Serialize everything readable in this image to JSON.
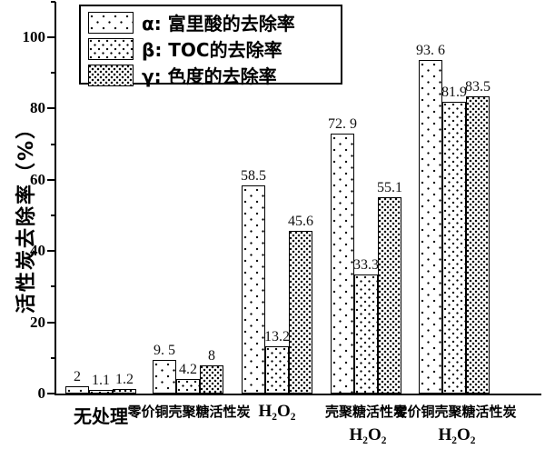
{
  "chart_data": {
    "type": "bar",
    "title": "",
    "xlabel": "",
    "ylabel": "活性炭去除率（%）",
    "ylim": [
      0,
      110
    ],
    "yticks_major": [
      0,
      20,
      40,
      60,
      80,
      100
    ],
    "yticks_minor": [
      10,
      30,
      50,
      70,
      90,
      110
    ],
    "grid": false,
    "legend_position": "top-left-inside",
    "categories": [
      {
        "line1": "无处理",
        "line2": "",
        "style": "cjk-large"
      },
      {
        "line1": "零价铜壳聚糖活性炭",
        "line2": "",
        "style": "cjk-small"
      },
      {
        "line1": "H₂O₂",
        "line2": "",
        "style": "formula"
      },
      {
        "line1": "壳聚糖活性炭",
        "line2": "H₂O₂",
        "style": "cjk-small"
      },
      {
        "line1": "零价铜壳聚糖活性炭",
        "line2": "H₂O₂",
        "style": "cjk-small"
      }
    ],
    "series": [
      {
        "key": "alpha",
        "legend": "α: 富里酸的去除率",
        "pattern": "sparse-dots",
        "values": [
          2,
          9.5,
          58.5,
          72.9,
          93.6
        ],
        "value_labels": [
          "2",
          "9. 5",
          "58.5",
          "72. 9",
          "93. 6"
        ]
      },
      {
        "key": "beta",
        "legend": "β: TOC的去除率",
        "pattern": "medium-dots",
        "values": [
          1.1,
          4.2,
          13.2,
          33.3,
          81.9
        ],
        "value_labels": [
          "1.1",
          "4.2",
          "13.2",
          "33.3",
          "81.9"
        ]
      },
      {
        "key": "gamma",
        "legend": "γ: 色度的去除率",
        "pattern": "dense-dots",
        "values": [
          1.2,
          8,
          45.6,
          55.1,
          83.5
        ],
        "value_labels": [
          "1.2",
          "8",
          "45.6",
          "55.1",
          "83.5"
        ]
      }
    ],
    "colors": {
      "background": "#ffffff",
      "bar_fill": "#ffffff",
      "bar_stroke": "#000000",
      "dot": "#000000",
      "text": "#000000"
    }
  }
}
